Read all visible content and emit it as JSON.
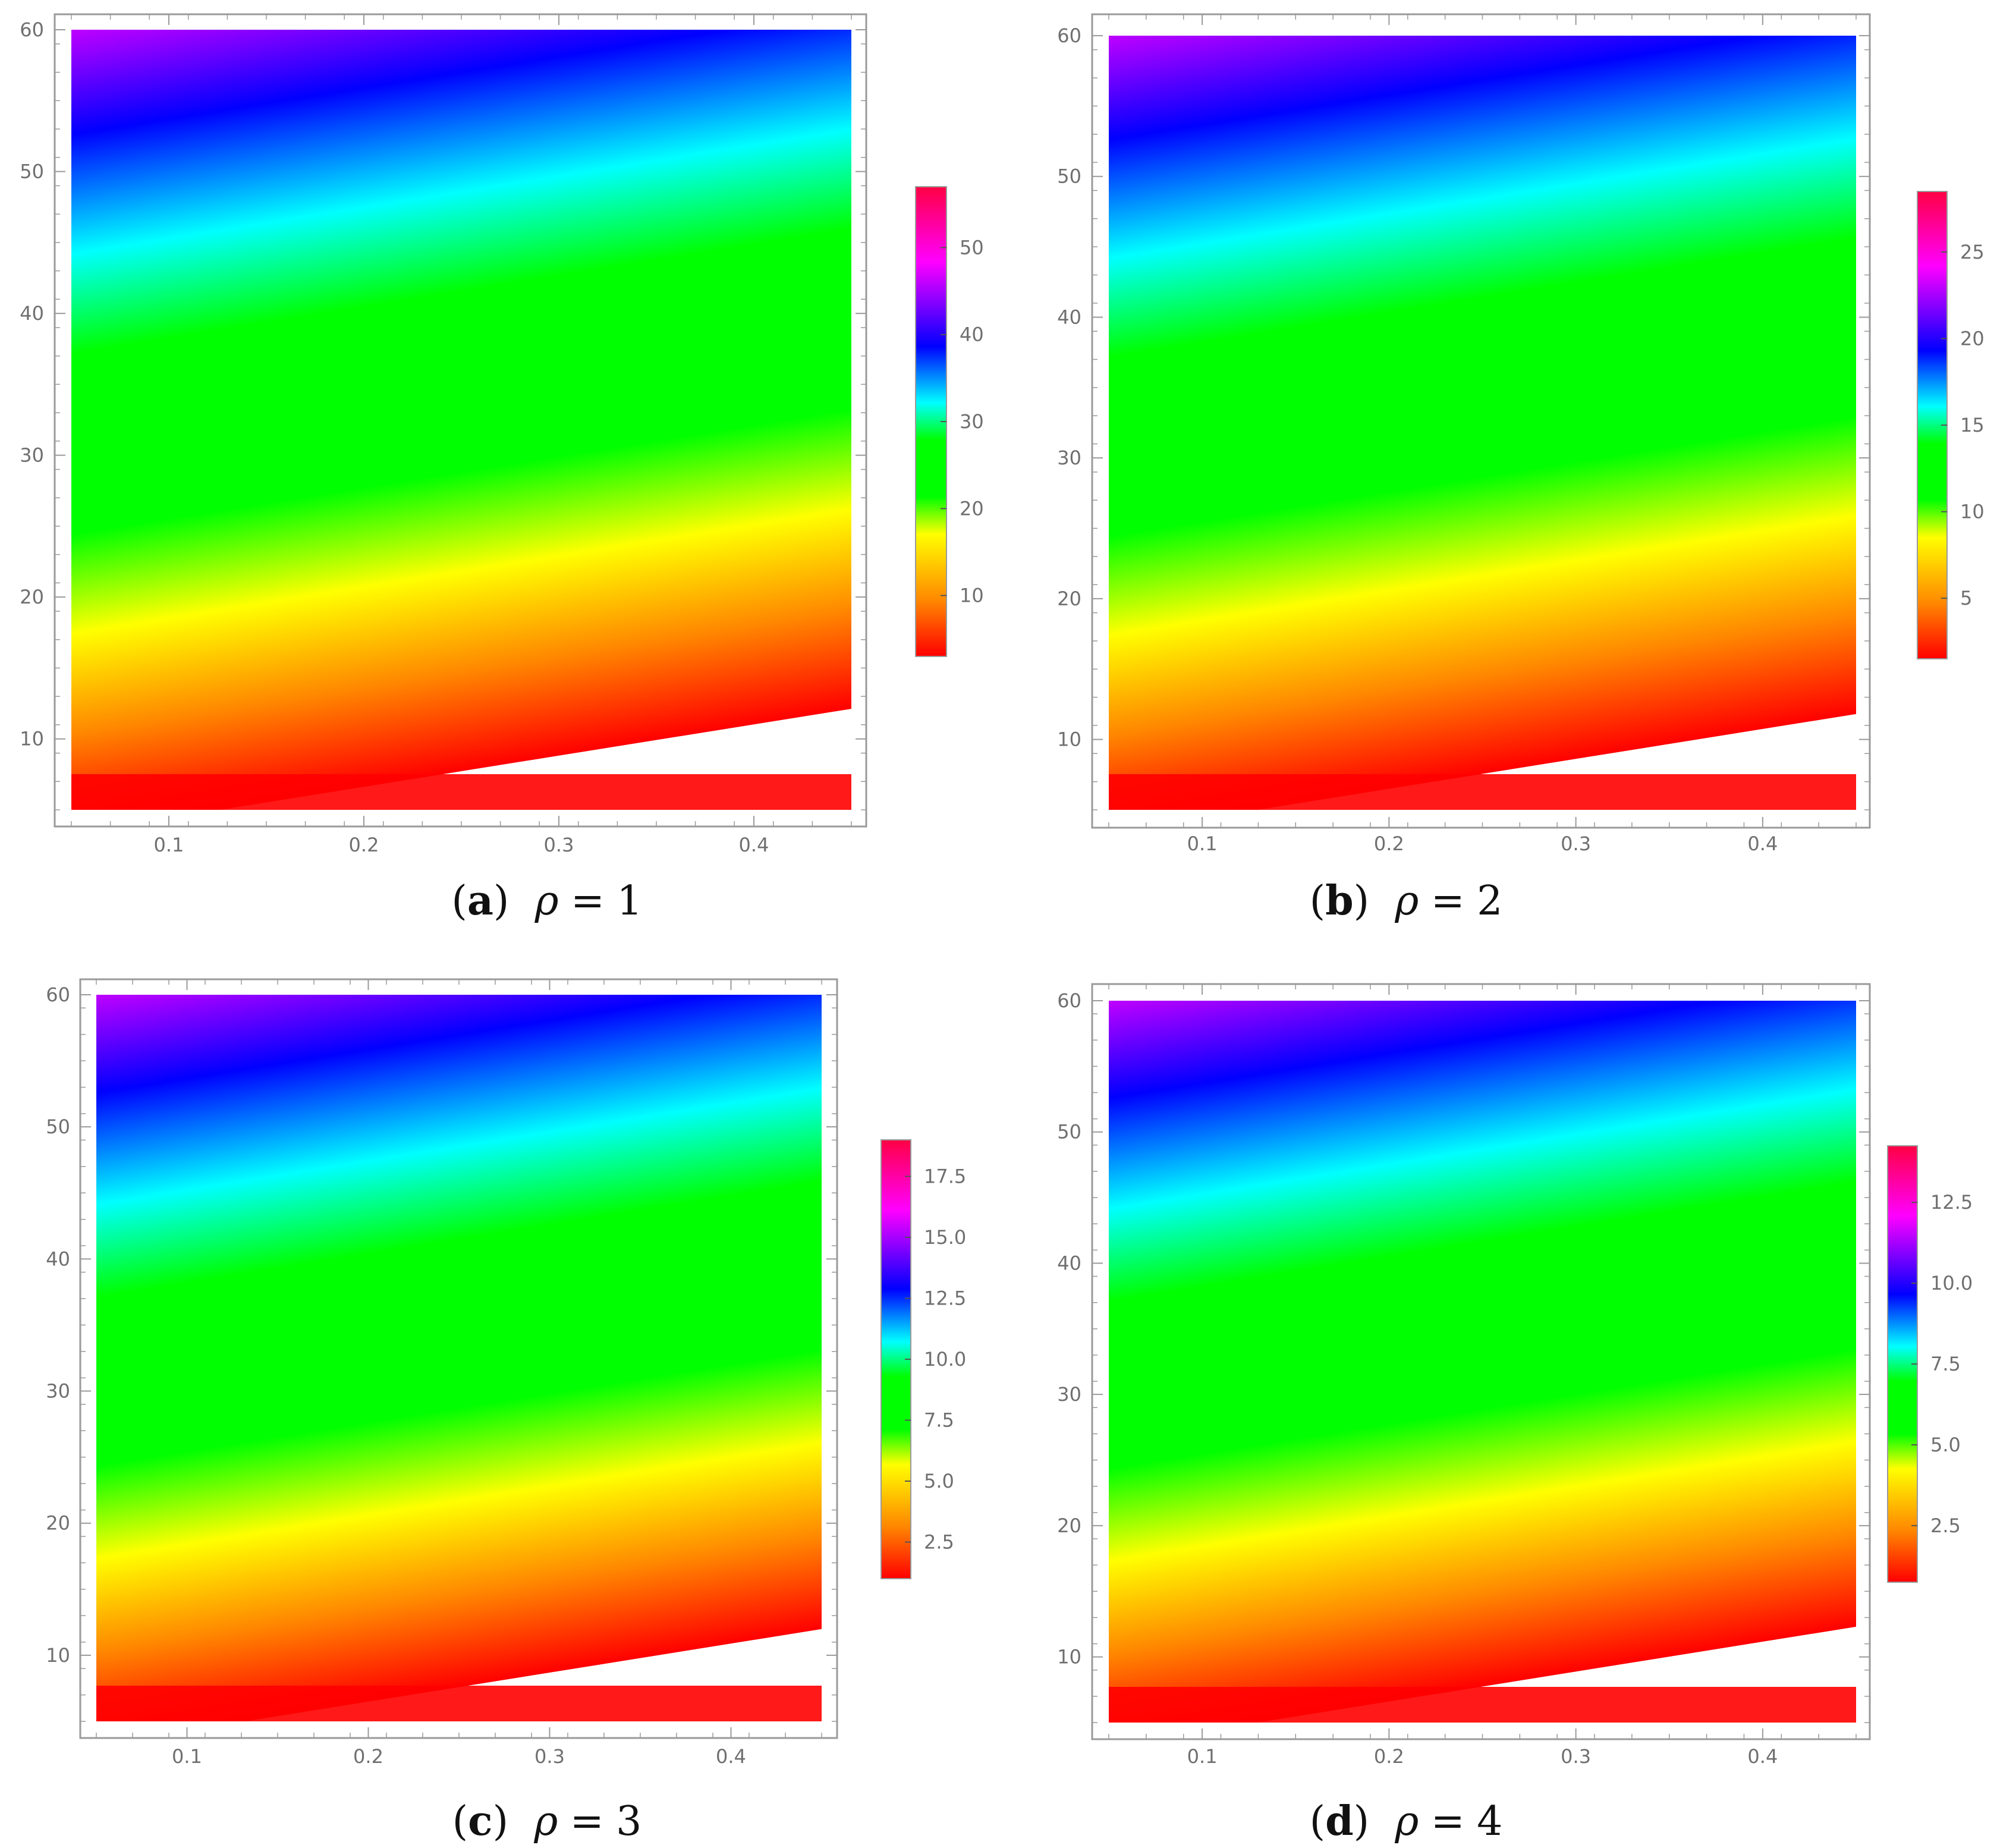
{
  "chart_data": [
    {
      "type": "heatmap",
      "caption": {
        "letter": "a",
        "variable": "ρ",
        "value": "1"
      },
      "x_ticks": [
        "0.1",
        "0.2",
        "0.3",
        "0.4"
      ],
      "y_ticks": [
        "10",
        "20",
        "30",
        "40",
        "50"
      ],
      "y_top_tick": "60",
      "xlim": [
        0.05,
        0.45
      ],
      "ylim": [
        5,
        60
      ],
      "legend": {
        "position": "right",
        "min": 3,
        "max": 57,
        "ticks": [
          {
            "value": 10,
            "label": "10"
          },
          {
            "value": 20,
            "label": "20"
          },
          {
            "value": 30,
            "label": "30"
          },
          {
            "value": 40,
            "label": "40"
          },
          {
            "value": 50,
            "label": "50"
          }
        ]
      }
    },
    {
      "type": "heatmap",
      "caption": {
        "letter": "b",
        "variable": "ρ",
        "value": "2"
      },
      "x_ticks": [
        "0.1",
        "0.2",
        "0.3",
        "0.4"
      ],
      "y_ticks": [
        "10",
        "20",
        "30",
        "40",
        "50"
      ],
      "y_top_tick": "60",
      "xlim": [
        0.05,
        0.45
      ],
      "ylim": [
        5,
        60
      ],
      "legend": {
        "position": "right",
        "min": 1.5,
        "max": 28.5,
        "ticks": [
          {
            "value": 5,
            "label": "5"
          },
          {
            "value": 10,
            "label": "10"
          },
          {
            "value": 15,
            "label": "15"
          },
          {
            "value": 20,
            "label": "20"
          },
          {
            "value": 25,
            "label": "25"
          }
        ]
      }
    },
    {
      "type": "heatmap",
      "caption": {
        "letter": "c",
        "variable": "ρ",
        "value": "3"
      },
      "x_ticks": [
        "0.1",
        "0.2",
        "0.3",
        "0.4"
      ],
      "y_ticks": [
        "10",
        "20",
        "30",
        "40",
        "50"
      ],
      "y_top_tick": "60",
      "xlim": [
        0.05,
        0.45
      ],
      "ylim": [
        5,
        60
      ],
      "legend": {
        "position": "right",
        "min": 1,
        "max": 19,
        "ticks": [
          {
            "value": 2.5,
            "label": "2.5"
          },
          {
            "value": 5,
            "label": "5.0"
          },
          {
            "value": 7.5,
            "label": "7.5"
          },
          {
            "value": 10,
            "label": "10.0"
          },
          {
            "value": 12.5,
            "label": "12.5"
          },
          {
            "value": 15,
            "label": "15.0"
          },
          {
            "value": 17.5,
            "label": "17.5"
          }
        ]
      }
    },
    {
      "type": "heatmap",
      "caption": {
        "letter": "d",
        "variable": "ρ",
        "value": "4"
      },
      "x_ticks": [
        "0.1",
        "0.2",
        "0.3",
        "0.4"
      ],
      "y_ticks": [
        "10",
        "20",
        "30",
        "40",
        "50"
      ],
      "y_top_tick": "60",
      "xlim": [
        0.05,
        0.45
      ],
      "ylim": [
        5,
        60
      ],
      "legend": {
        "position": "right",
        "min": 0.75,
        "max": 14.25,
        "ticks": [
          {
            "value": 2.5,
            "label": "2.5"
          },
          {
            "value": 5,
            "label": "5.0"
          },
          {
            "value": 7.5,
            "label": "7.5"
          },
          {
            "value": 10,
            "label": "10.0"
          },
          {
            "value": 12.5,
            "label": "12.5"
          }
        ]
      }
    }
  ],
  "colors": {
    "colormap": [
      "#ff0000",
      "#ff8800",
      "#ffff00",
      "#00ff00",
      "#00ffff",
      "#0000ff",
      "#ff00ff",
      "#ff0044"
    ],
    "frame": "#9a9a9a",
    "tick_text": "#6f6f6f"
  }
}
